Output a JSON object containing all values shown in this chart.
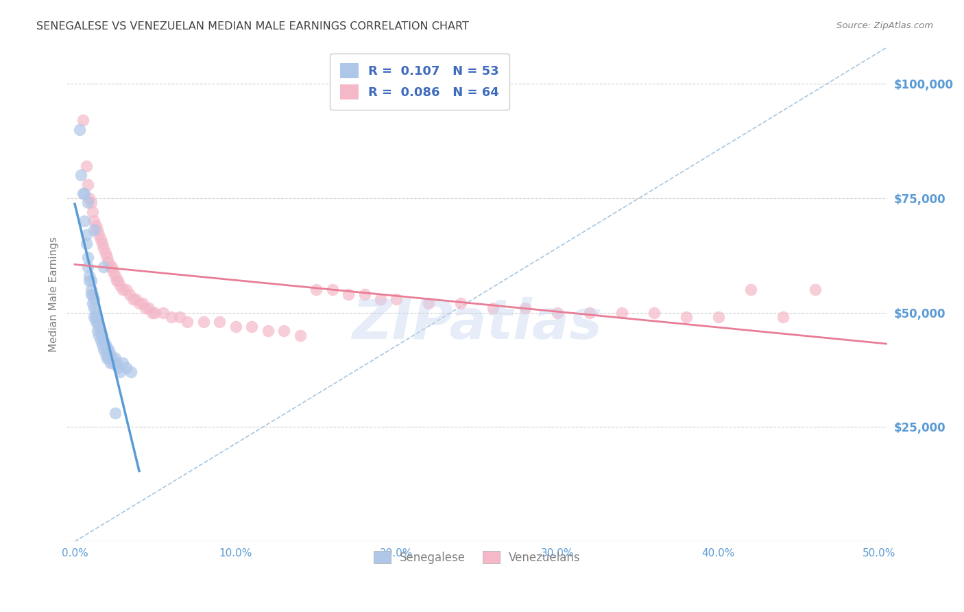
{
  "title": "SENEGALESE VS VENEZUELAN MEDIAN MALE EARNINGS CORRELATION CHART",
  "source": "Source: ZipAtlas.com",
  "ylabel": "Median Male Earnings",
  "xlabel_ticks": [
    "0.0%",
    "10.0%",
    "20.0%",
    "30.0%",
    "40.0%",
    "50.0%"
  ],
  "xlabel_vals": [
    0.0,
    0.1,
    0.2,
    0.3,
    0.4,
    0.5
  ],
  "ylabel_ticks": [
    "$25,000",
    "$50,000",
    "$75,000",
    "$100,000"
  ],
  "ylabel_vals": [
    25000,
    50000,
    75000,
    100000
  ],
  "xlim": [
    -0.005,
    0.505
  ],
  "ylim": [
    0,
    108000
  ],
  "legend_entries": [
    {
      "label": "R =  0.107   N = 53",
      "color": "#aec6e8"
    },
    {
      "label": "R =  0.086   N = 64",
      "color": "#f4b8c8"
    }
  ],
  "bottom_legend": [
    "Senegalese",
    "Venezuelans"
  ],
  "bottom_legend_colors": [
    "#aec6e8",
    "#f4b8c8"
  ],
  "watermark": "ZIPatlas",
  "watermark_color": "#c8d8f0",
  "senegalese_x": [
    0.005,
    0.006,
    0.007,
    0.007,
    0.008,
    0.008,
    0.009,
    0.009,
    0.01,
    0.01,
    0.01,
    0.011,
    0.011,
    0.012,
    0.012,
    0.012,
    0.013,
    0.013,
    0.013,
    0.014,
    0.014,
    0.015,
    0.015,
    0.016,
    0.016,
    0.017,
    0.017,
    0.018,
    0.018,
    0.019,
    0.019,
    0.02,
    0.02,
    0.021,
    0.021,
    0.022,
    0.022,
    0.023,
    0.024,
    0.025,
    0.026,
    0.027,
    0.028,
    0.03,
    0.032,
    0.035,
    0.003,
    0.004,
    0.006,
    0.008,
    0.012,
    0.018,
    0.025
  ],
  "senegalese_y": [
    76000,
    70000,
    67000,
    65000,
    62000,
    60000,
    58000,
    57000,
    57000,
    55000,
    54000,
    54000,
    52000,
    53000,
    51000,
    49000,
    50000,
    49000,
    48000,
    48000,
    46000,
    47000,
    45000,
    46000,
    44000,
    45000,
    43000,
    44000,
    42000,
    43000,
    41000,
    42000,
    40000,
    42000,
    40000,
    41000,
    39000,
    40000,
    39000,
    40000,
    39000,
    38000,
    37000,
    39000,
    38000,
    37000,
    90000,
    80000,
    76000,
    74000,
    68000,
    60000,
    28000
  ],
  "venezuelan_x": [
    0.005,
    0.007,
    0.008,
    0.009,
    0.01,
    0.011,
    0.012,
    0.013,
    0.014,
    0.015,
    0.016,
    0.017,
    0.018,
    0.019,
    0.02,
    0.021,
    0.022,
    0.023,
    0.024,
    0.025,
    0.026,
    0.027,
    0.028,
    0.03,
    0.032,
    0.034,
    0.036,
    0.038,
    0.04,
    0.042,
    0.044,
    0.046,
    0.048,
    0.05,
    0.055,
    0.06,
    0.065,
    0.07,
    0.08,
    0.09,
    0.1,
    0.11,
    0.12,
    0.13,
    0.14,
    0.15,
    0.16,
    0.17,
    0.18,
    0.19,
    0.2,
    0.22,
    0.24,
    0.26,
    0.28,
    0.3,
    0.32,
    0.34,
    0.36,
    0.38,
    0.4,
    0.42,
    0.44,
    0.46
  ],
  "venezuelan_y": [
    92000,
    82000,
    78000,
    75000,
    74000,
    72000,
    70000,
    69000,
    68000,
    67000,
    66000,
    65000,
    64000,
    63000,
    62000,
    61000,
    60000,
    60000,
    59000,
    58000,
    57000,
    57000,
    56000,
    55000,
    55000,
    54000,
    53000,
    53000,
    52000,
    52000,
    51000,
    51000,
    50000,
    50000,
    50000,
    49000,
    49000,
    48000,
    48000,
    48000,
    47000,
    47000,
    46000,
    46000,
    45000,
    55000,
    55000,
    54000,
    54000,
    53000,
    53000,
    52000,
    52000,
    51000,
    51000,
    50000,
    50000,
    50000,
    50000,
    49000,
    49000,
    55000,
    49000,
    55000
  ],
  "blue_line_color": "#5b9bd5",
  "pink_line_color": "#e87d96",
  "dashed_line_color": "#90b8d8",
  "scatter_blue": "#aec6e8",
  "scatter_pink": "#f4b8c8",
  "grid_color": "#d0d0d0",
  "background_color": "#ffffff",
  "title_color": "#404040",
  "source_color": "#808080",
  "axis_label_color": "#808080",
  "right_tick_color": "#5b9bd5",
  "bottom_tick_color": "#5b9bd5"
}
